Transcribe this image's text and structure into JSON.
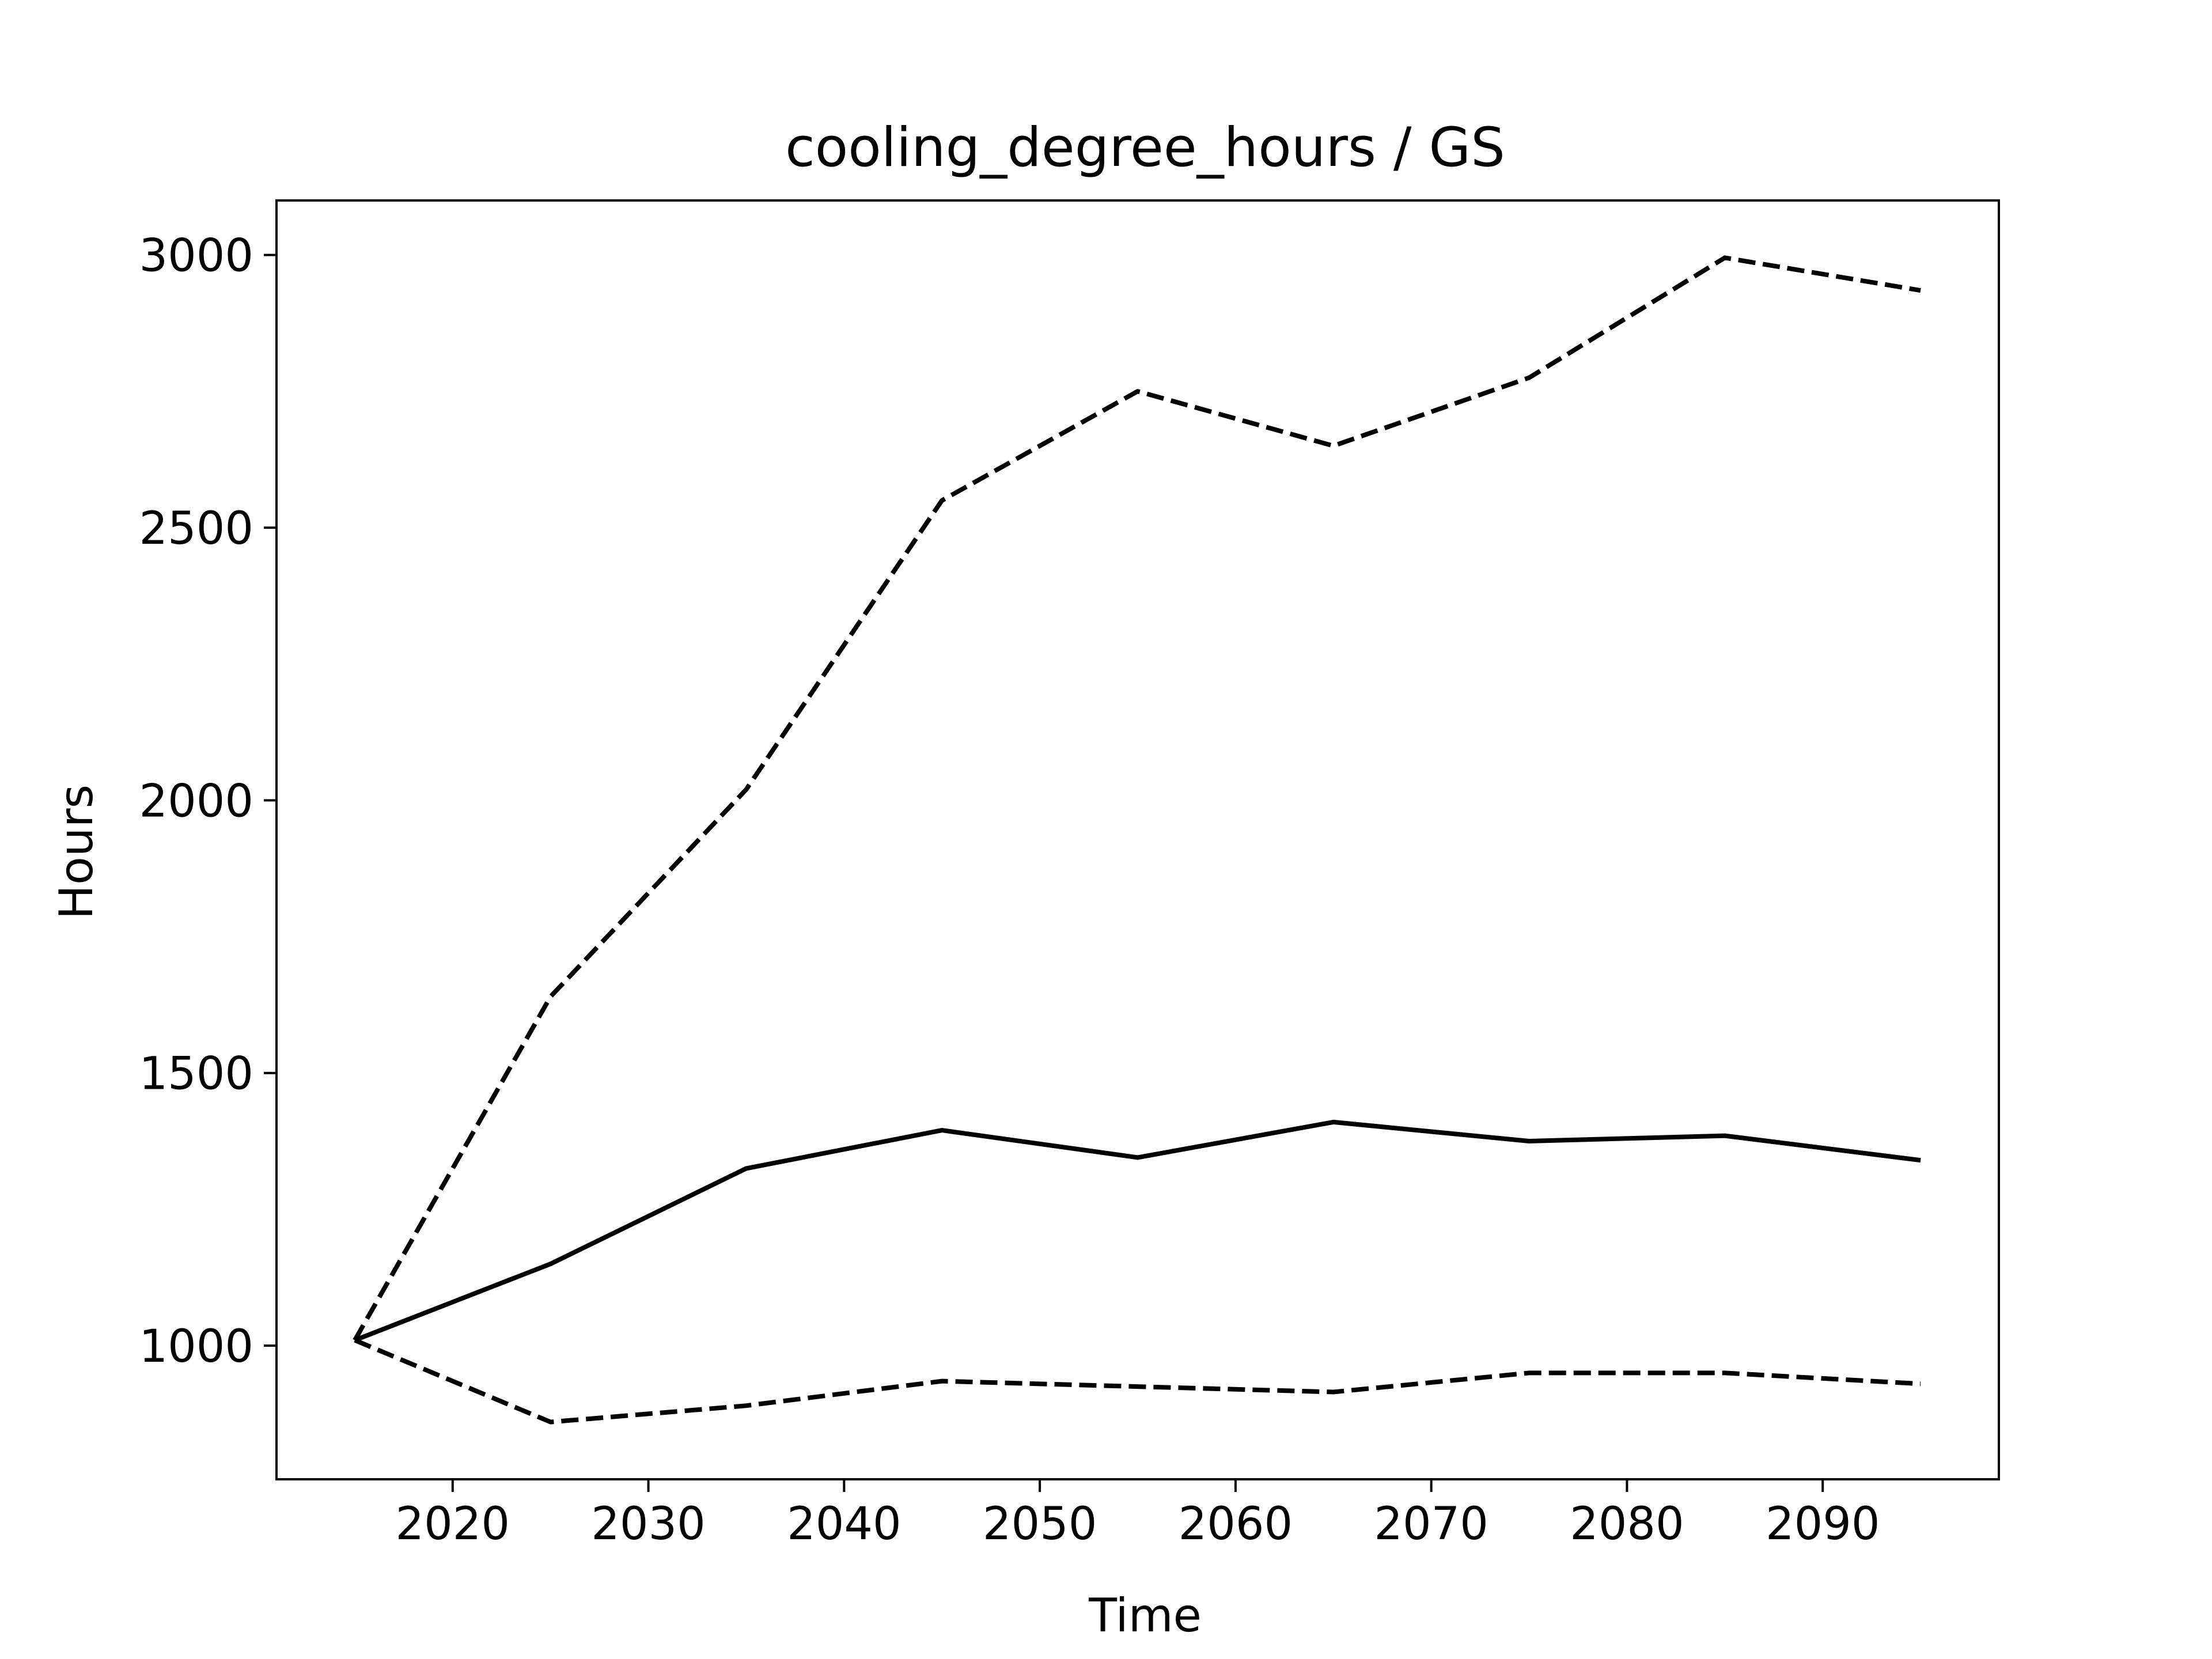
{
  "chart_data": {
    "type": "line",
    "title": "cooling_degree_hours / GS",
    "xlabel": "Time",
    "ylabel": "Hours",
    "x": [
      2015,
      2025,
      2035,
      2045,
      2055,
      2065,
      2075,
      2085,
      2095
    ],
    "xlim": [
      2011,
      2099
    ],
    "ylim": [
      755,
      3100
    ],
    "xticks": [
      "2020",
      "2030",
      "2040",
      "2050",
      "2060",
      "2070",
      "2080",
      "2090"
    ],
    "yticks": [
      "1000",
      "1500",
      "2000",
      "2500",
      "3000"
    ],
    "grid": false,
    "series": [
      {
        "style": "dashed",
        "color": "#000000",
        "values": [
          1010,
          1640,
          2020,
          2550,
          2750,
          2650,
          2775,
          2995,
          2935
        ]
      },
      {
        "style": "solid",
        "color": "#000000",
        "values": [
          1010,
          1150,
          1325,
          1395,
          1345,
          1410,
          1375,
          1385,
          1340
        ]
      },
      {
        "style": "dashed",
        "color": "#000000",
        "values": [
          1010,
          860,
          890,
          935,
          925,
          915,
          950,
          950,
          930
        ]
      }
    ]
  }
}
